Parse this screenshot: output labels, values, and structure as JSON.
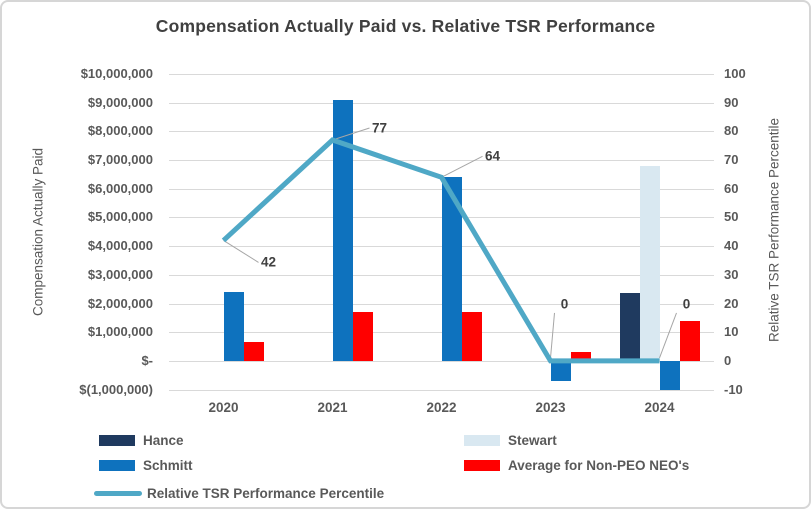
{
  "colors": {
    "hance": "#1F3A5F",
    "stewart": "#D9E8F1",
    "schmitt": "#0E72BE",
    "avg": "#FF0000",
    "tsr_line": "#4FA8C6",
    "grid": "#D9D9D9",
    "leader": "#A6A6A6",
    "title_text": "#404040",
    "axis_text": "#595959"
  },
  "chart_data": {
    "type": "bar",
    "combo": "bar+line",
    "title": "Compensation Actually Paid vs. Relative TSR Performance",
    "categories": [
      "2020",
      "2021",
      "2022",
      "2023",
      "2024"
    ],
    "bar_series": [
      {
        "name": "Hance",
        "color_key": "hance",
        "values": [
          null,
          null,
          null,
          null,
          2350000
        ]
      },
      {
        "name": "Stewart",
        "color_key": "stewart",
        "values": [
          null,
          null,
          null,
          null,
          6800000
        ]
      },
      {
        "name": "Schmitt",
        "color_key": "schmitt",
        "values": [
          2400000,
          9100000,
          6400000,
          -700000,
          -1000000
        ]
      },
      {
        "name": "Average for Non-PEO NEO's",
        "color_key": "avg",
        "values": [
          650000,
          1700000,
          1700000,
          300000,
          1400000
        ]
      }
    ],
    "line_series": {
      "name": "Relative TSR Performance Percentile",
      "color_key": "tsr_line",
      "axis": "right",
      "values": [
        42,
        77,
        64,
        0,
        0
      ],
      "data_labels": [
        "42",
        "77",
        "64",
        "0",
        "0"
      ]
    },
    "left_axis": {
      "label": "Compensation Actually Paid",
      "min": -1000000,
      "max": 10000000,
      "tick_step": 1000000,
      "tick_labels": [
        "$10,000,000",
        "$9,000,000",
        "$8,000,000",
        "$7,000,000",
        "$6,000,000",
        "$5,000,000",
        "$4,000,000",
        "$3,000,000",
        "$2,000,000",
        "$1,000,000",
        "$-",
        "$(1,000,000)"
      ]
    },
    "right_axis": {
      "label": "Relative TSR Performance Percentile",
      "min": -10,
      "max": 100,
      "tick_step": 10,
      "tick_labels": [
        "100",
        "90",
        "80",
        "70",
        "60",
        "50",
        "40",
        "30",
        "20",
        "10",
        "0",
        "-10"
      ]
    },
    "grid": true,
    "legend_position": "bottom"
  },
  "legend": {
    "columns": [
      {
        "items": [
          {
            "label": "Hance",
            "swatch": "bar",
            "color_key": "hance"
          },
          {
            "label": "Schmitt",
            "swatch": "bar",
            "color_key": "schmitt"
          },
          {
            "label": "Relative TSR Performance Percentile",
            "swatch": "line",
            "color_key": "tsr_line"
          }
        ]
      },
      {
        "items": [
          {
            "label": "Stewart",
            "swatch": "bar",
            "color_key": "stewart"
          },
          {
            "label": "Average for Non-PEO NEO's",
            "swatch": "bar",
            "color_key": "avg"
          }
        ]
      }
    ]
  }
}
